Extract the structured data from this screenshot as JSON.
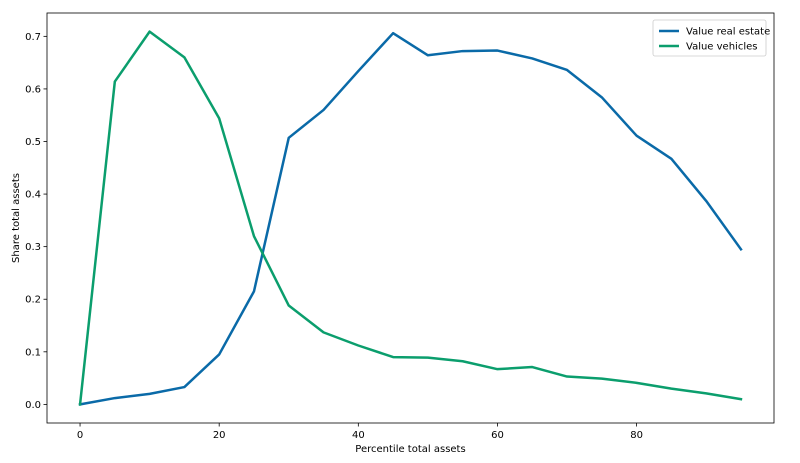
{
  "chart_data": {
    "type": "line",
    "xlabel": "Percentile total assets",
    "ylabel": "Share total assets",
    "xlim": [
      -4.75,
      99.75
    ],
    "ylim": [
      -0.0354,
      0.7444
    ],
    "x_ticks": [
      0,
      20,
      40,
      60,
      80
    ],
    "x_tick_labels": [
      "0",
      "20",
      "40",
      "60",
      "80"
    ],
    "y_ticks": [
      0.0,
      0.1,
      0.2,
      0.3,
      0.4,
      0.5,
      0.6,
      0.7
    ],
    "y_tick_labels": [
      "0.0",
      "0.1",
      "0.2",
      "0.3",
      "0.4",
      "0.5",
      "0.6",
      "0.7"
    ],
    "grid": false,
    "legend_position": "top-right",
    "x": [
      0,
      5,
      10,
      15,
      20,
      25,
      30,
      35,
      40,
      45,
      50,
      55,
      60,
      65,
      70,
      75,
      80,
      85,
      90,
      95
    ],
    "series": [
      {
        "name": "Value real estate",
        "color": "#0a6aa8",
        "values": [
          0.0,
          0.012,
          0.02,
          0.033,
          0.095,
          0.215,
          0.507,
          0.56,
          0.634,
          0.706,
          0.664,
          0.672,
          0.673,
          0.658,
          0.636,
          0.584,
          0.511,
          0.467,
          0.387,
          0.295
        ]
      },
      {
        "name": "Value vehicles",
        "color": "#0b9e6d",
        "values": [
          0.0,
          0.614,
          0.709,
          0.66,
          0.544,
          0.32,
          0.188,
          0.137,
          0.112,
          0.09,
          0.089,
          0.082,
          0.067,
          0.071,
          0.053,
          0.049,
          0.041,
          0.03,
          0.021,
          0.01
        ]
      }
    ]
  }
}
